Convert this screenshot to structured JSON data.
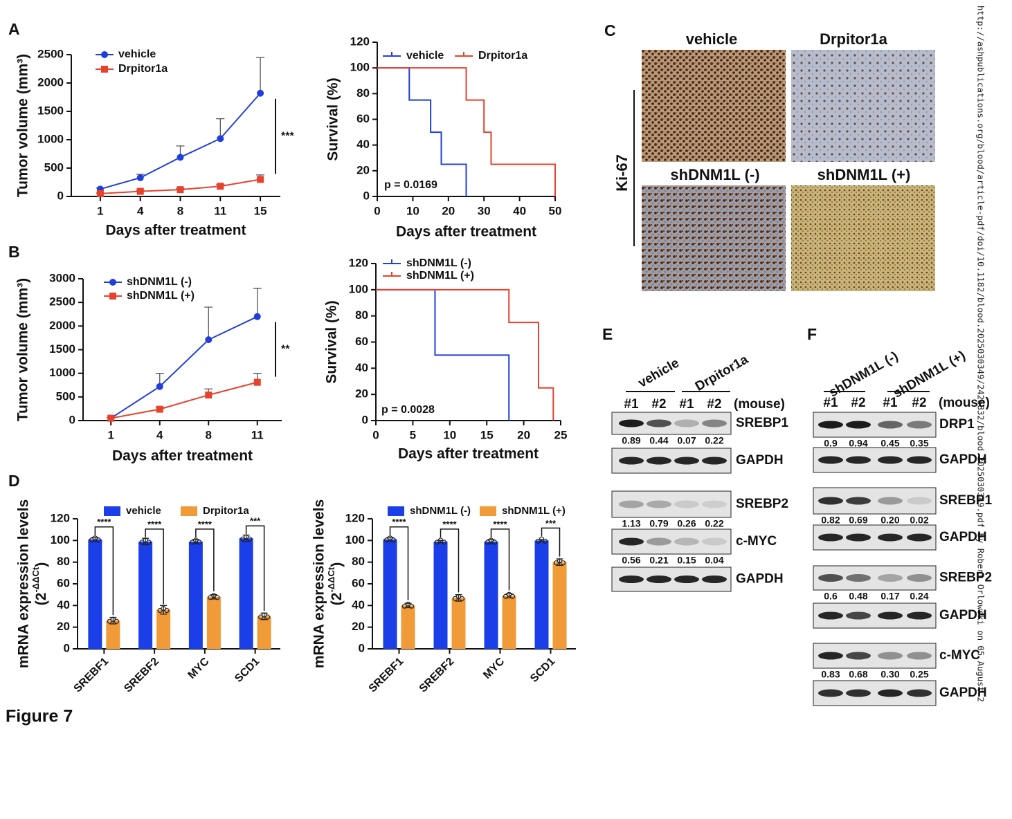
{
  "figure_label": "Figure 7",
  "panels": [
    "A",
    "B",
    "C",
    "D",
    "E",
    "F"
  ],
  "watermark": "http://ashpublications.org/blood/article-pdf/doi/10.1182/blood.2025030349/2426832/blood.2025030349.pdf by Robert Orlowski on 05 August 2",
  "chart_data": [
    {
      "type": "line",
      "x_label": "Days after treatment",
      "y_label": "Tumor volume (mm³)",
      "categories": [
        "1",
        "4",
        "8",
        "11",
        "15"
      ],
      "series": [
        {
          "name": "vehicle",
          "color": "#1f3fdc",
          "marker": "circle",
          "values": [
            130,
            330,
            690,
            1020,
            1820
          ],
          "errors": [
            20,
            60,
            200,
            350,
            630
          ]
        },
        {
          "name": "Drpitor1a",
          "color": "#e8412c",
          "marker": "square",
          "values": [
            50,
            90,
            120,
            180,
            300
          ],
          "errors": [
            10,
            20,
            20,
            30,
            80
          ]
        }
      ],
      "ylim": [
        0,
        2500
      ],
      "yticks": [
        0,
        500,
        1000,
        1500,
        2000,
        2500
      ],
      "significance": "***"
    },
    {
      "type": "survival",
      "x_label": "Days after treatment",
      "y_label": "Survival (%)",
      "series": [
        {
          "name": "vehicle",
          "color": "#1f3fdc",
          "x": [
            0,
            9,
            15,
            18,
            25
          ],
          "values": [
            100,
            75,
            50,
            25,
            0
          ]
        },
        {
          "name": "Drpitor1a",
          "color": "#e8412c",
          "x": [
            0,
            25,
            30,
            32,
            50
          ],
          "values": [
            100,
            75,
            50,
            25,
            0
          ]
        }
      ],
      "xlim": [
        0,
        50
      ],
      "xticks": [
        0,
        10,
        20,
        30,
        40,
        50
      ],
      "ylim": [
        0,
        120
      ],
      "yticks": [
        0,
        20,
        40,
        60,
        80,
        100,
        120
      ],
      "annotation": "p = 0.0169"
    },
    {
      "type": "line",
      "x_label": "Days after treatment",
      "y_label": "Tumor volume (mm³)",
      "categories": [
        "1",
        "4",
        "8",
        "11"
      ],
      "series": [
        {
          "name": "shDNM1L (-)",
          "color": "#1f3fdc",
          "marker": "circle",
          "values": [
            50,
            720,
            1710,
            2200
          ],
          "errors": [
            20,
            280,
            690,
            600
          ]
        },
        {
          "name": "shDNM1L (+)",
          "color": "#e8412c",
          "marker": "square",
          "values": [
            50,
            240,
            540,
            810
          ],
          "errors": [
            10,
            40,
            130,
            190
          ]
        }
      ],
      "ylim": [
        0,
        3000
      ],
      "yticks": [
        0,
        500,
        1000,
        1500,
        2000,
        2500,
        3000
      ],
      "significance": "**"
    },
    {
      "type": "survival",
      "x_label": "Days after treatment",
      "y_label": "Survival (%)",
      "series": [
        {
          "name": "shDNM1L (-)",
          "color": "#1f3fdc",
          "x": [
            0,
            8,
            18
          ],
          "values": [
            100,
            50,
            0
          ]
        },
        {
          "name": "shDNM1L (+)",
          "color": "#e8412c",
          "x": [
            0,
            18,
            22,
            24
          ],
          "values": [
            100,
            75,
            25,
            0
          ]
        }
      ],
      "xlim": [
        0,
        25
      ],
      "xticks": [
        0,
        5,
        10,
        15,
        20,
        25
      ],
      "ylim": [
        0,
        120
      ],
      "yticks": [
        0,
        20,
        40,
        60,
        80,
        100,
        120
      ],
      "annotation": "p = 0.0028"
    },
    {
      "type": "bar",
      "y_label": "mRNA expression levels",
      "y_label_unit": {
        "base": "(2",
        "exponent": "-ΔΔCt",
        "close": ")"
      },
      "categories": [
        "SREBF1",
        "SREBF2",
        "MYC",
        "SCD1"
      ],
      "series": [
        {
          "name": "vehicle",
          "color": "#1a3ee8",
          "values": [
            101,
            99,
            99,
            102
          ],
          "errors": [
            2,
            3,
            2,
            3
          ]
        },
        {
          "name": "Drpitor1a",
          "color": "#f19a38",
          "values": [
            26,
            36,
            48,
            30
          ],
          "errors": [
            3,
            4,
            2,
            3
          ]
        }
      ],
      "ylim": [
        0,
        120
      ],
      "yticks": [
        0,
        20,
        40,
        60,
        80,
        100,
        120
      ],
      "significance": [
        "****",
        "****",
        "****",
        "***"
      ]
    },
    {
      "type": "bar",
      "y_label": "mRNA expression levels",
      "y_label_unit": {
        "base": "(2",
        "exponent": "-ΔΔCt",
        "close": ")"
      },
      "categories": [
        "SREBF1",
        "SREBF2",
        "MYC",
        "SCD1"
      ],
      "series": [
        {
          "name": "shDNM1L (-)",
          "color": "#1a3ee8",
          "values": [
            101,
            99,
            99,
            100
          ],
          "errors": [
            2,
            1,
            2,
            1
          ]
        },
        {
          "name": "shDNM1L (+)",
          "color": "#f19a38",
          "values": [
            40,
            47,
            49,
            80
          ],
          "errors": [
            2,
            3,
            2,
            3
          ]
        }
      ],
      "ylim": [
        0,
        120
      ],
      "yticks": [
        0,
        20,
        40,
        60,
        80,
        100,
        120
      ],
      "significance": [
        "****",
        "****",
        "****",
        "***"
      ]
    }
  ],
  "ihc": {
    "stain": "Ki-67",
    "images": [
      "vehicle",
      "Drpitor1a",
      "shDNM1L (-)",
      "shDNM1L (+)"
    ]
  },
  "blot_e": {
    "groups": [
      "vehicle",
      "Drpitor1a"
    ],
    "lanes": [
      "#1",
      "#2",
      "#1",
      "#2"
    ],
    "sample_label": "(mouse)",
    "rows": [
      {
        "label": "SREBP1",
        "quant": [
          "0.89",
          "0.44",
          "0.07",
          "0.22"
        ]
      },
      {
        "label": "GAPDH"
      },
      {
        "label": "SREBP2",
        "quant": [
          "1.13",
          "0.79",
          "0.26",
          "0.22"
        ]
      },
      {
        "label": "c-MYC",
        "quant": [
          "0.56",
          "0.21",
          "0.15",
          "0.04"
        ]
      },
      {
        "label": "GAPDH"
      }
    ]
  },
  "blot_f": {
    "groups": [
      "shDNM1L (-)",
      "shDNM1L (+)"
    ],
    "lanes": [
      "#1",
      "#2",
      "#1",
      "#2"
    ],
    "sample_label": "(mouse)",
    "rows": [
      {
        "label": "DRP1",
        "quant": [
          "0.9",
          "0.94",
          "0.45",
          "0.35"
        ]
      },
      {
        "label": "GAPDH"
      },
      {
        "label": "SREBP1",
        "quant": [
          "0.82",
          "0.69",
          "0.20",
          "0.02"
        ]
      },
      {
        "label": "GAPDH"
      },
      {
        "label": "SREBP2",
        "quant": [
          "0.6",
          "0.48",
          "0.17",
          "0.24"
        ]
      },
      {
        "label": "GAPDH"
      },
      {
        "label": "c-MYC",
        "quant": [
          "0.83",
          "0.68",
          "0.30",
          "0.25"
        ]
      },
      {
        "label": "GAPDH"
      }
    ]
  }
}
